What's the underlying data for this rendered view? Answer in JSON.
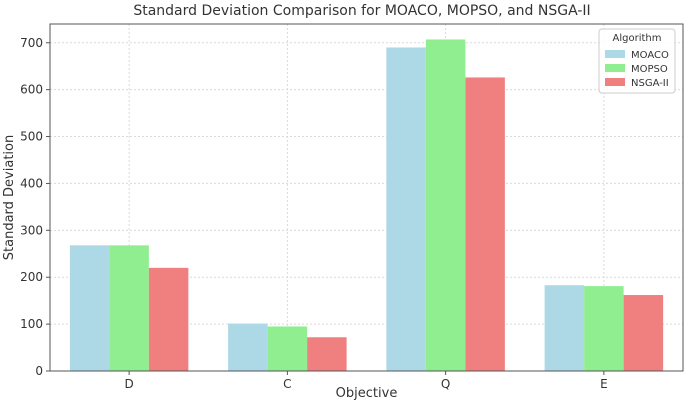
{
  "chart_data": {
    "type": "bar",
    "title": "Standard Deviation Comparison for MOACO, MOPSO, and NSGA-II",
    "xlabel": "Objective",
    "ylabel": "Standard Deviation",
    "categories": [
      "D",
      "C",
      "Q",
      "E"
    ],
    "ylim": [
      0,
      740
    ],
    "yticks": [
      0,
      100,
      200,
      300,
      400,
      500,
      600,
      700
    ],
    "grid": true,
    "legend_title": "Algorithm",
    "legend_position": "top-right",
    "series": [
      {
        "name": "MOACO",
        "color": "#ADD8E6",
        "values": [
          268,
          101,
          690,
          183
        ]
      },
      {
        "name": "MOPSO",
        "color": "#90EE90",
        "values": [
          268,
          95,
          707,
          181
        ]
      },
      {
        "name": "NSGA-II",
        "color": "#F08080",
        "values": [
          220,
          72,
          626,
          162
        ]
      }
    ]
  }
}
